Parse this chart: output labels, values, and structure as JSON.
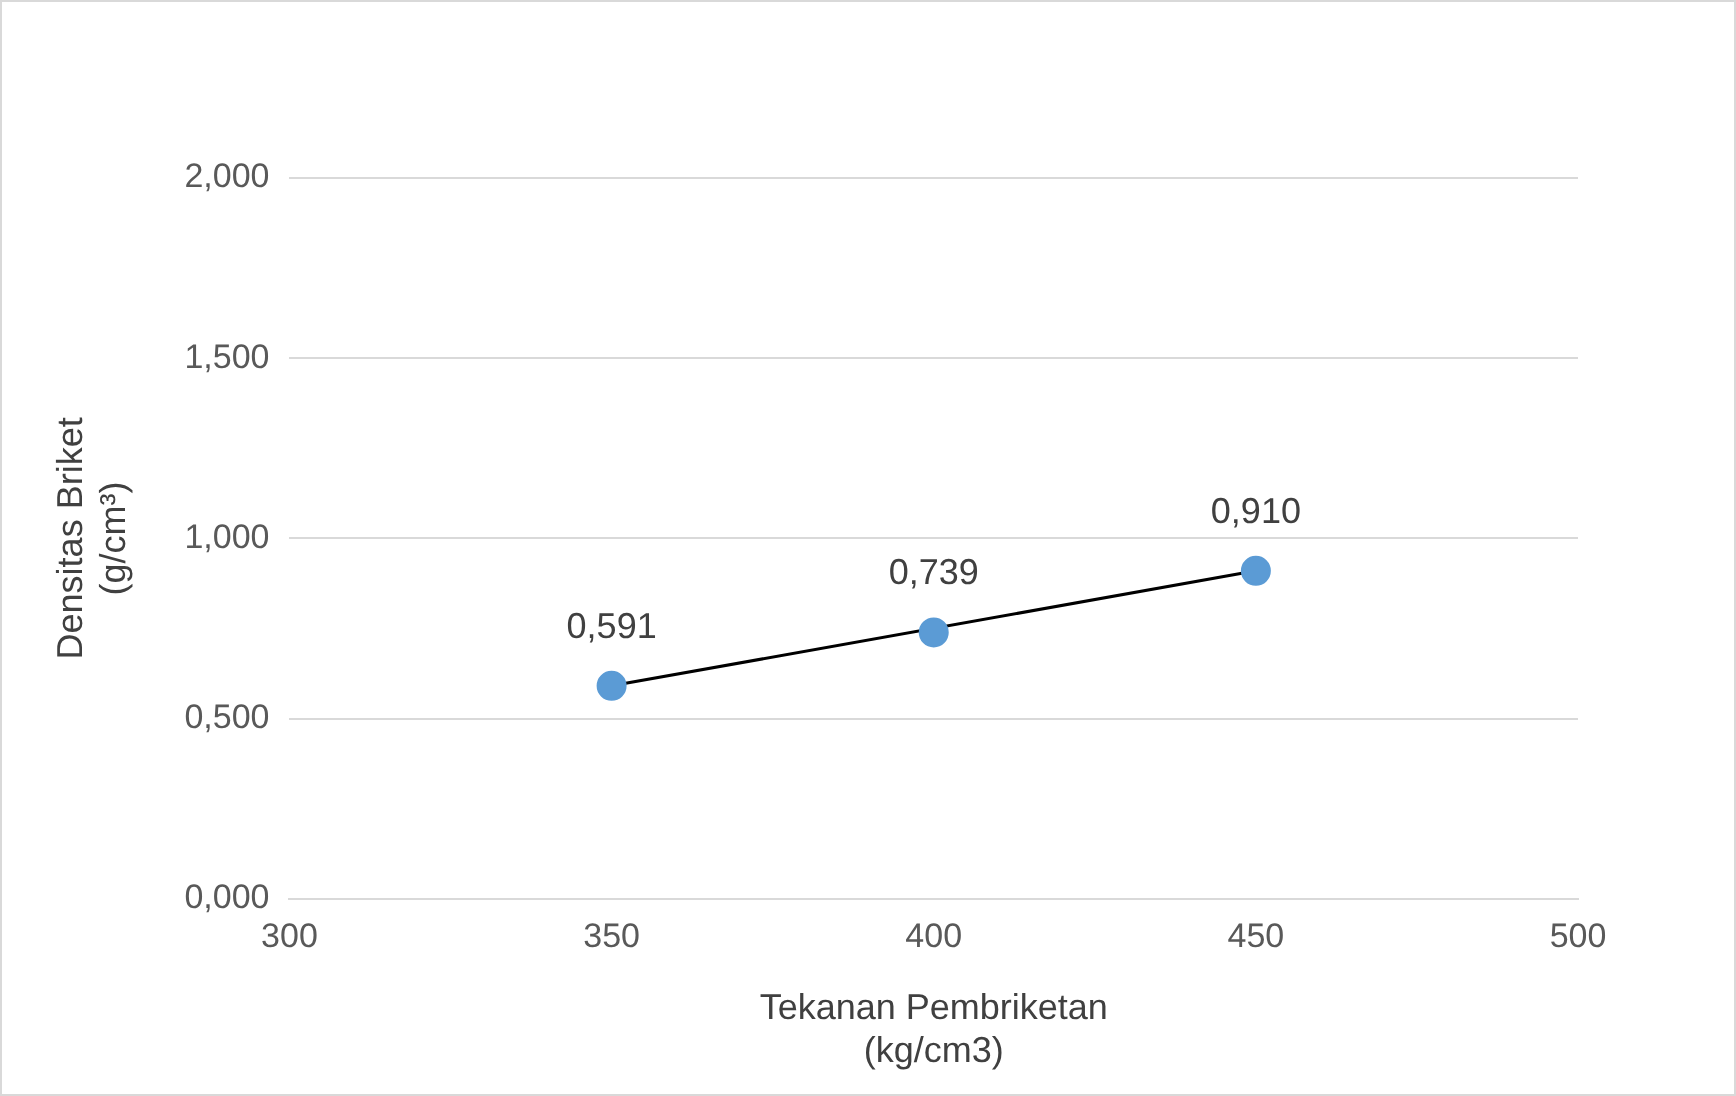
{
  "chart_data": {
    "type": "scatter",
    "xlabel": "Tekanan Pembriketan\n(kg/cm3)",
    "ylabel": "Densitas Briket\n(g/cm³)",
    "xlim": [
      300,
      500
    ],
    "xticks": [
      300,
      350,
      400,
      450,
      500
    ],
    "ylim": [
      0,
      2
    ],
    "yticks": [
      {
        "value": 0,
        "label": "0,000"
      },
      {
        "value": 0.5,
        "label": "0,500"
      },
      {
        "value": 1,
        "label": "1,000"
      },
      {
        "value": 1.5,
        "label": "1,500"
      },
      {
        "value": 2,
        "label": "2,000"
      }
    ],
    "grid": "y",
    "legend": false,
    "marker": "circle",
    "series": [
      {
        "color": "#5b9bd5",
        "x": [
          350,
          400,
          450
        ],
        "values": [
          0.591,
          0.739,
          0.91
        ],
        "value_labels": [
          "0,591",
          "0,739",
          "0,910"
        ]
      },
      {
        "type": "line",
        "color": "#000000",
        "x": [
          350,
          450
        ],
        "values": [
          0.591,
          0.91
        ],
        "marker": "none",
        "line_style": "solid"
      }
    ]
  }
}
